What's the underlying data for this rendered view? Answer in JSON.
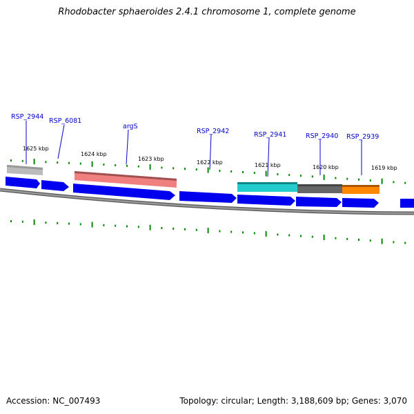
{
  "title": "Rhodobacter sphaeroides 2.4.1 chromosome 1, complete genome",
  "accession_text": "Accession: NC_007493",
  "stats_text": "Topology: circular; Length: 3,188,609 bp; Genes: 3,070",
  "colors": {
    "gene_blue": "#0000ee",
    "backbone": "#888888",
    "tick_green": "#008800",
    "label_blue": "#0000cc"
  },
  "kbp_labels": [
    "1625 kbp",
    "1624 kbp",
    "1623 kbp",
    "1622 kbp",
    "1621 kbp",
    "1620 kbp",
    "1619 kbp"
  ],
  "gene_labels": [
    "RSP_2944",
    "RSP_6081",
    "argS",
    "RSP_2942",
    "RSP_2941",
    "RSP_2940",
    "RSP_2939"
  ],
  "feature_colors": {
    "RSP_2944": "#bbbbbb",
    "argS": "#f08080",
    "RSP_2941": "#22cccc",
    "RSP_2940": "#666666",
    "RSP_2939": "#ff8800"
  }
}
